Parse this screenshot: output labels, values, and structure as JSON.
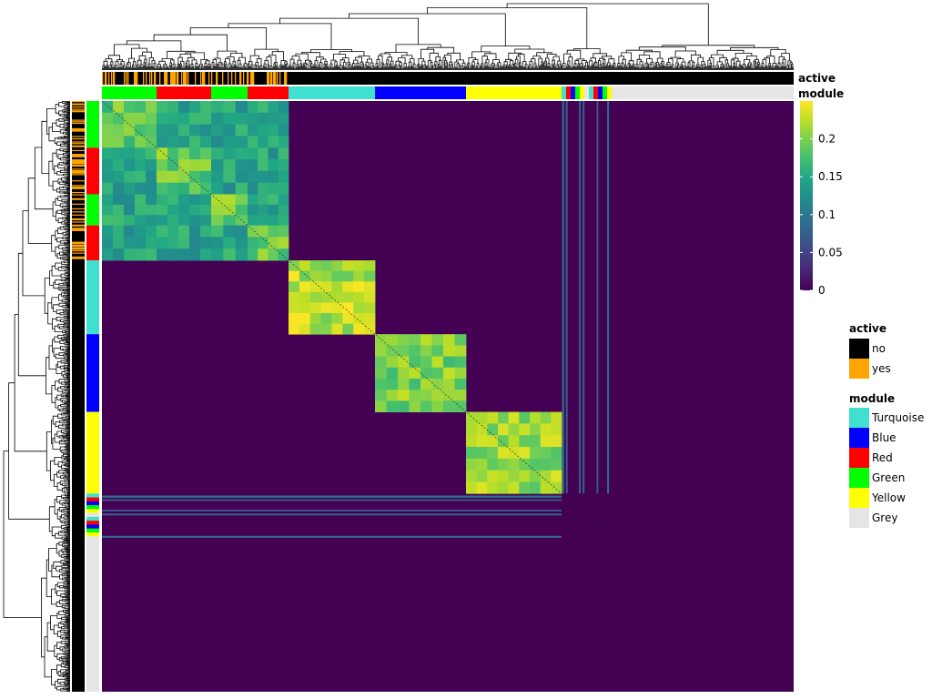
{
  "chart_data": {
    "type": "heatmap",
    "title": "",
    "xlabel": "",
    "ylabel": "",
    "features": "symmetric clustered similarity matrix of genes with row and column dendrograms",
    "annotation_tracks": [
      "active",
      "module"
    ],
    "module_order": [
      "Green",
      "Red",
      "Green",
      "Red",
      "Turquoise",
      "Blue",
      "Yellow",
      "mixed",
      "Grey"
    ],
    "module_block_size": {
      "Green_1": 60,
      "Red_1": 60,
      "Green_2": 40,
      "Red_2": 45,
      "Turquoise": 95,
      "Blue": 100,
      "Yellow": 105,
      "mixed": 60,
      "Grey": 195
    },
    "within_module_mean_similarity": {
      "Green/Red cluster": 0.17,
      "Turquoise": 0.2,
      "Blue": 0.18,
      "Yellow": 0.19,
      "Grey": 0.0
    },
    "between_module_similarity": 0.0,
    "colorscale": {
      "name": "viridis",
      "range": [
        0,
        0.25
      ],
      "ticks": [
        0,
        0.05,
        0.1,
        0.15,
        0.2
      ],
      "tick_labels": [
        "0",
        "0.05",
        "0.1",
        "0.15",
        "0.2"
      ]
    },
    "active_fraction": {
      "Green/Red cluster": 0.4,
      "other modules": 0.0
    }
  },
  "annotations": {
    "active_label": "active",
    "module_label": "module"
  },
  "legend": {
    "active": {
      "title": "active",
      "items": [
        {
          "label": "no",
          "color": "#000000"
        },
        {
          "label": "yes",
          "color": "#FFA500"
        }
      ]
    },
    "module": {
      "title": "module",
      "items": [
        {
          "label": "Turquoise",
          "color": "#40E0D0"
        },
        {
          "label": "Blue",
          "color": "#0000FF"
        },
        {
          "label": "Red",
          "color": "#FF0000"
        },
        {
          "label": "Green",
          "color": "#00FF00"
        },
        {
          "label": "Yellow",
          "color": "#FFFF00"
        },
        {
          "label": "Grey",
          "color": "#E5E5E5"
        }
      ]
    }
  }
}
